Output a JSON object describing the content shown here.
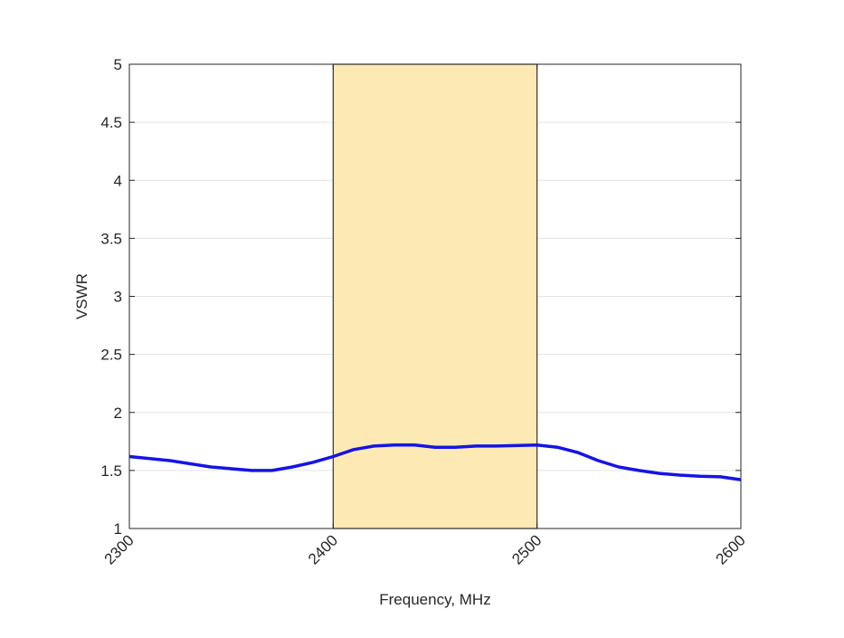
{
  "chart_data": {
    "type": "line",
    "title": "",
    "xlabel": "Frequency, MHz",
    "ylabel": "VSWR",
    "xlim": [
      2300,
      2600
    ],
    "ylim": [
      1,
      5
    ],
    "xticks": [
      2300,
      2400,
      2500,
      2600
    ],
    "yticks": [
      1,
      1.5,
      2,
      2.5,
      3,
      3.5,
      4,
      4.5,
      5
    ],
    "ytick_labels": [
      "1",
      "1.5",
      "2",
      "2.5",
      "3",
      "3.5",
      "4",
      "4.5",
      "5"
    ],
    "xtick_labels": [
      "2300",
      "2400",
      "2500",
      "2600"
    ],
    "grid": "horizontal",
    "highlight_band": {
      "x": [
        2400,
        2500
      ],
      "y": [
        1,
        5
      ],
      "color": "#fde9b3"
    },
    "series": [
      {
        "color": "#1414e6",
        "x": [
          2300,
          2320,
          2340,
          2360,
          2370,
          2380,
          2390,
          2400,
          2410,
          2420,
          2430,
          2440,
          2450,
          2460,
          2470,
          2480,
          2500,
          2510,
          2520,
          2530,
          2540,
          2550,
          2560,
          2570,
          2580,
          2590,
          2600
        ],
        "y": [
          1.62,
          1.585,
          1.53,
          1.5,
          1.5,
          1.53,
          1.57,
          1.62,
          1.68,
          1.71,
          1.72,
          1.72,
          1.7,
          1.7,
          1.71,
          1.71,
          1.72,
          1.7,
          1.655,
          1.585,
          1.53,
          1.5,
          1.475,
          1.46,
          1.45,
          1.445,
          1.42
        ]
      }
    ]
  }
}
